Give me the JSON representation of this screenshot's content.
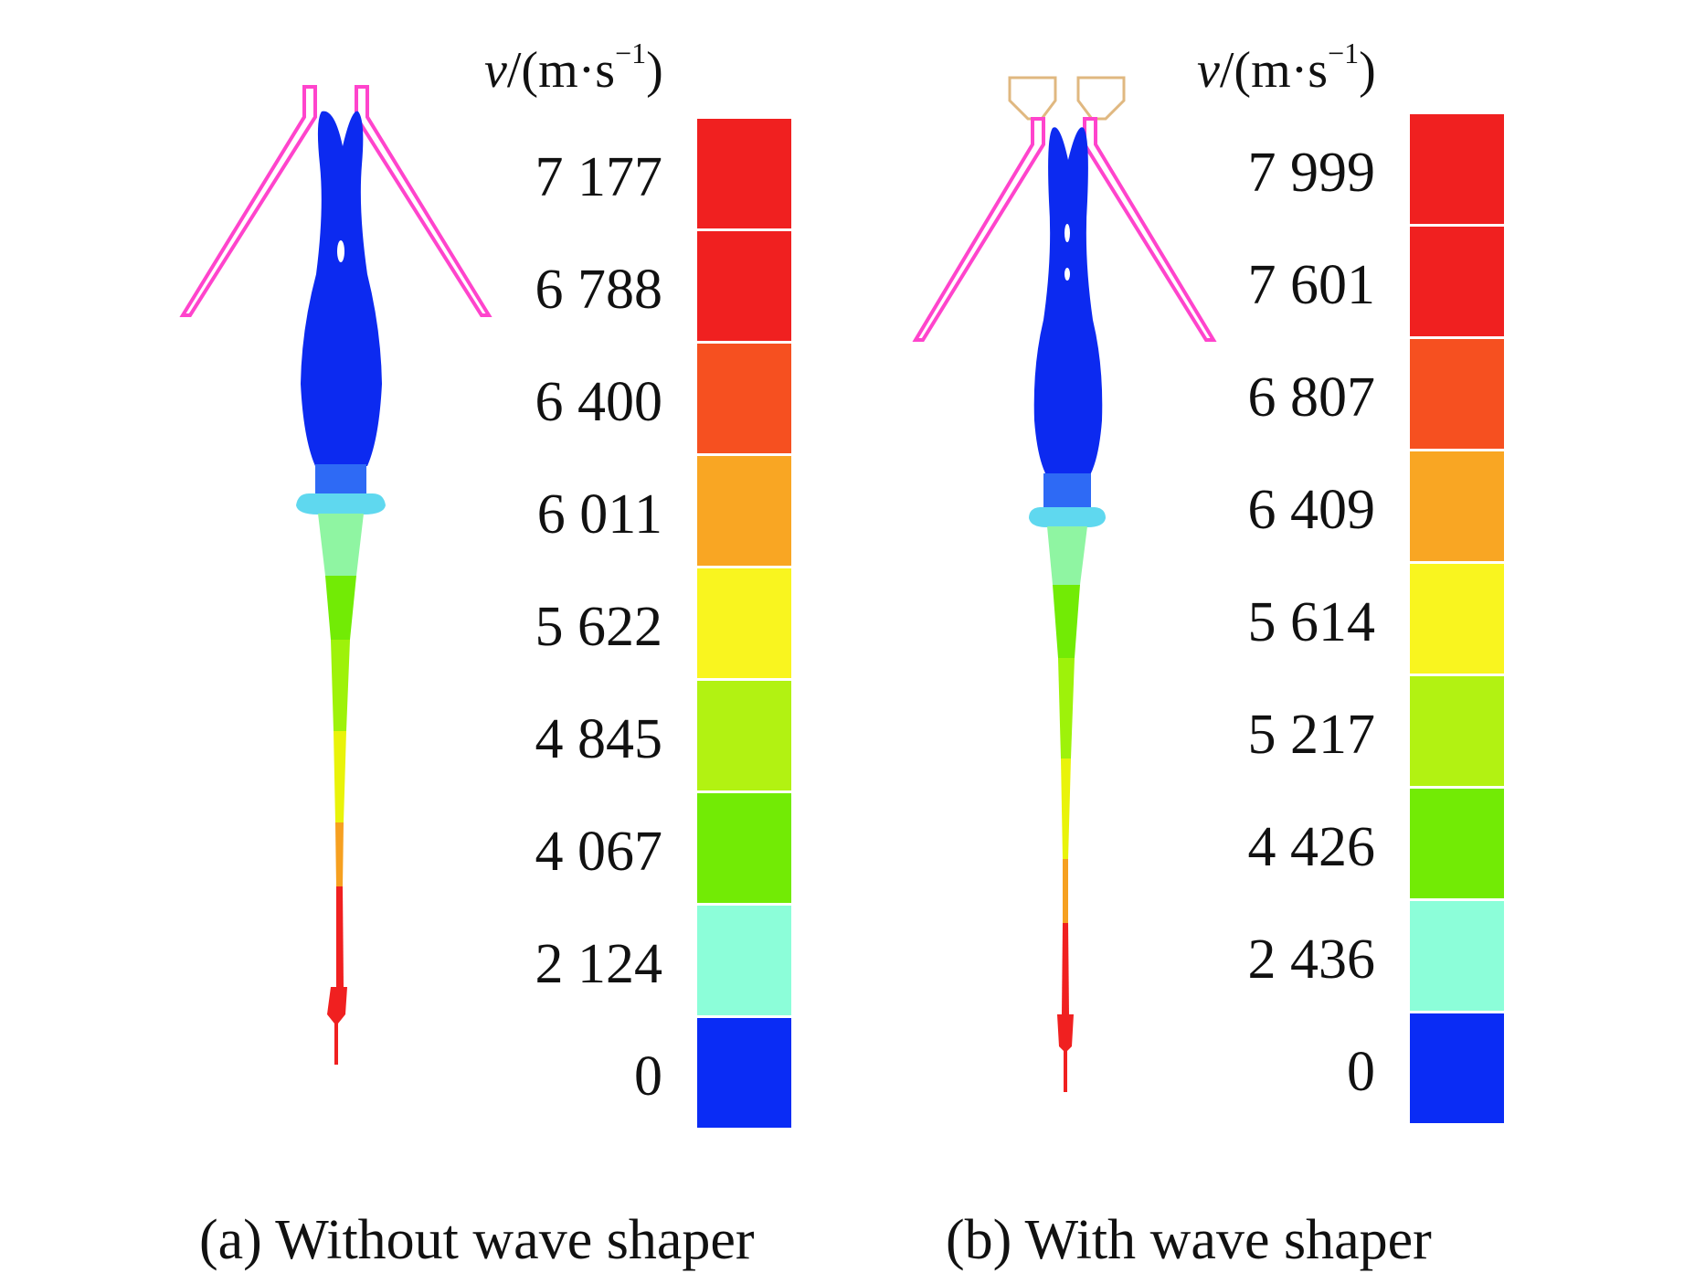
{
  "panels": [
    {
      "id": "a",
      "unit": {
        "symbol": "v",
        "rest": "/(m·s",
        "sup": "−1",
        "close": ")"
      },
      "legend_labels": [
        "7 177",
        "6 788",
        "6 400",
        "6 011",
        "5 622",
        "4 845",
        "4 067",
        "2 124",
        "0"
      ],
      "caption": "(a) Without wave shaper"
    },
    {
      "id": "b",
      "unit": {
        "symbol": "v",
        "rest": "/(m·s",
        "sup": "−1",
        "close": ")"
      },
      "legend_labels": [
        "7 999",
        "7 601",
        "6 807",
        "6 409",
        "5 614",
        "5 217",
        "4 426",
        "2 436",
        "0"
      ],
      "caption": "(b) With wave shaper"
    }
  ],
  "legend_colors": [
    "#f02020",
    "#f02020",
    "#f65020",
    "#f9a623",
    "#f9f51f",
    "#b2f212",
    "#72eb05",
    "#8cfed9",
    "#0a2cf5"
  ],
  "liner_color": "#ff44cc",
  "wave_shaper_color": "#e0b880"
}
